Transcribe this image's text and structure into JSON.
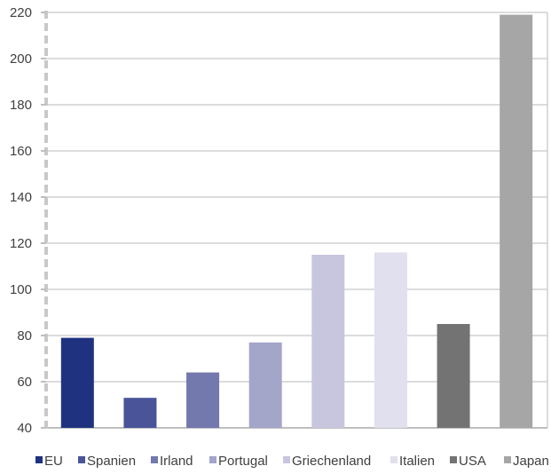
{
  "chart_data": {
    "type": "bar",
    "categories": [
      "EU",
      "Spanien",
      "Irland",
      "Portugal",
      "Griechenland",
      "Italien",
      "USA",
      "Japan"
    ],
    "values": [
      79,
      53,
      64,
      77,
      115,
      116,
      85,
      219
    ],
    "colors": [
      "#1f3280",
      "#4a5499",
      "#7378ad",
      "#a3a5c9",
      "#c7c6de",
      "#e1e0ee",
      "#737373",
      "#a6a6a6"
    ],
    "ylim": [
      40,
      220
    ],
    "yticks": [
      40,
      60,
      80,
      100,
      120,
      140,
      160,
      180,
      200,
      220
    ],
    "ytick_labels": [
      "40",
      "60",
      "80",
      "100",
      "120",
      "140",
      "160",
      "180",
      "200",
      "220"
    ],
    "grid": true,
    "legend_position": "bottom",
    "title": "",
    "xlabel": "",
    "ylabel": ""
  }
}
